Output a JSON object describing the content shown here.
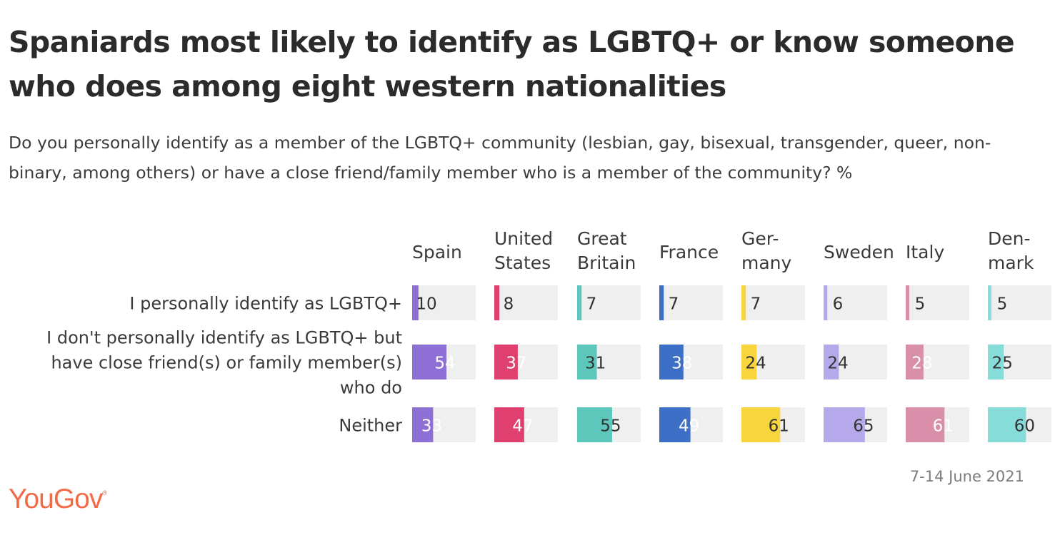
{
  "title": "Spaniards most likely to identify as LGBTQ+ or know someone who does among eight western nationalities",
  "subtitle": "Do you personally identify as a member of the LGBTQ+ community (lesbian, gay, bisexual, transgender, queer, non-binary, among others) or have a close friend/family member who is a member of the community? %",
  "footer": {
    "date": "7-14 June 2021",
    "logo": "YouGov",
    "logo_mark": "®"
  },
  "chart_data": {
    "type": "table",
    "value_range": [
      0,
      100
    ],
    "columns": [
      {
        "label": [
          "Spain"
        ],
        "color": "#8e6fd6"
      },
      {
        "label": [
          "United",
          "States"
        ],
        "color": "#e0406f"
      },
      {
        "label": [
          "Great",
          "Britain"
        ],
        "color": "#5ec7bb"
      },
      {
        "label": [
          "France"
        ],
        "color": "#3d6fc6"
      },
      {
        "label": [
          "Ger-",
          "many"
        ],
        "color": "#f8d53d"
      },
      {
        "label": [
          "Sweden"
        ],
        "color": "#b6a9eb"
      },
      {
        "label": [
          "Italy"
        ],
        "color": "#d98faa"
      },
      {
        "label": [
          "Den-",
          "mark"
        ],
        "color": "#86dcd8"
      }
    ],
    "rows": [
      {
        "label": [
          "I personally identify as LGBTQ+"
        ],
        "values": [
          10,
          8,
          7,
          7,
          7,
          6,
          5,
          5
        ]
      },
      {
        "label": [
          "I don't personally identify as LGBTQ+ but",
          "have close friend(s) or family member(s)",
          "who do"
        ],
        "values": [
          54,
          37,
          31,
          38,
          24,
          24,
          28,
          25
        ]
      },
      {
        "label": [
          "Neither"
        ],
        "values": [
          33,
          47,
          55,
          49,
          61,
          65,
          61,
          60
        ]
      }
    ],
    "light_text_on_fill": [
      [
        false,
        false,
        false,
        false,
        false,
        false,
        false,
        false
      ],
      [
        true,
        true,
        false,
        true,
        false,
        false,
        true,
        false
      ],
      [
        true,
        true,
        false,
        true,
        false,
        false,
        true,
        false
      ]
    ]
  }
}
